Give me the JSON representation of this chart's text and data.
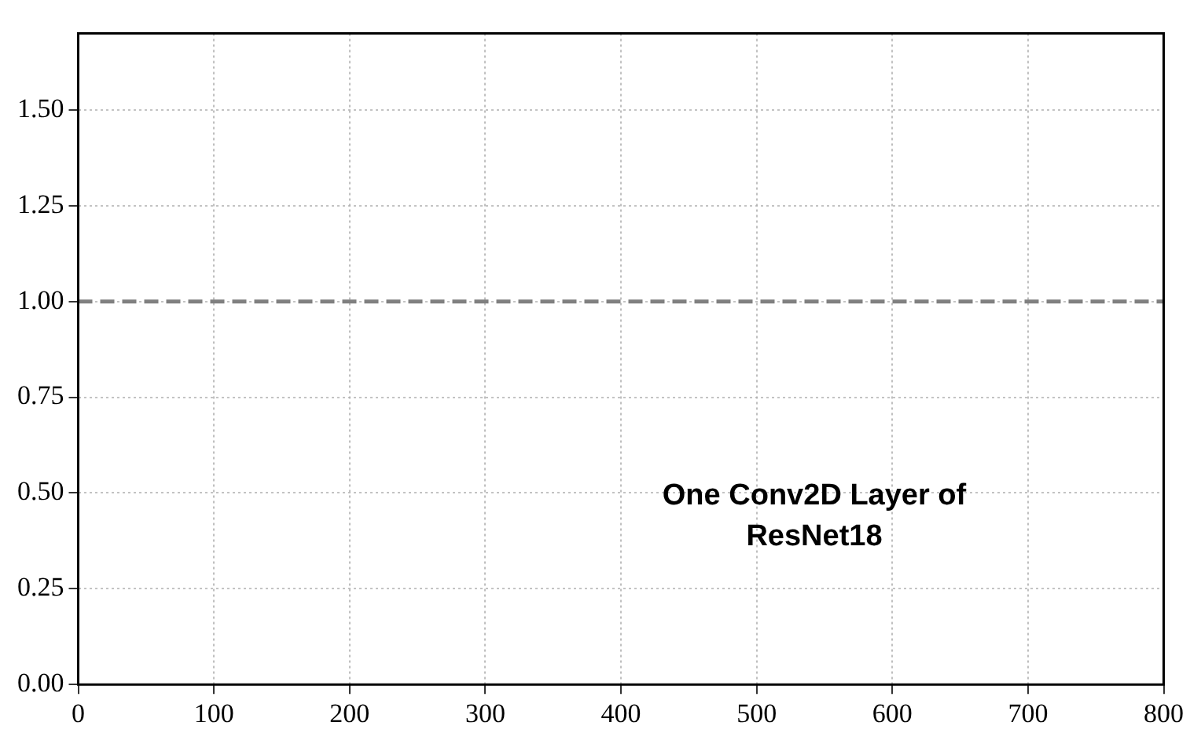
{
  "chart_data": {
    "type": "line",
    "xlim": [
      0,
      800
    ],
    "xticks": [
      0,
      100,
      200,
      300,
      400,
      500,
      600,
      700,
      800
    ],
    "ylim": [
      0,
      1.7
    ],
    "yticks": [
      {
        "value": 0,
        "label": "0.00"
      },
      {
        "value": 0.25,
        "label": "0.25"
      },
      {
        "value": 0.5,
        "label": "0.50"
      },
      {
        "value": 0.75,
        "label": "0.75"
      },
      {
        "value": 1,
        "label": "1.00"
      },
      {
        "value": 1.25,
        "label": "1.25"
      },
      {
        "value": 1.5,
        "label": "1.50"
      }
    ],
    "grid": true,
    "ref_lines": [
      {
        "axis": "y",
        "value": 1,
        "color": "#808080",
        "line_style": "dashed"
      }
    ],
    "annotations": [
      "One Conv2D Layer of ResNet18"
    ]
  }
}
